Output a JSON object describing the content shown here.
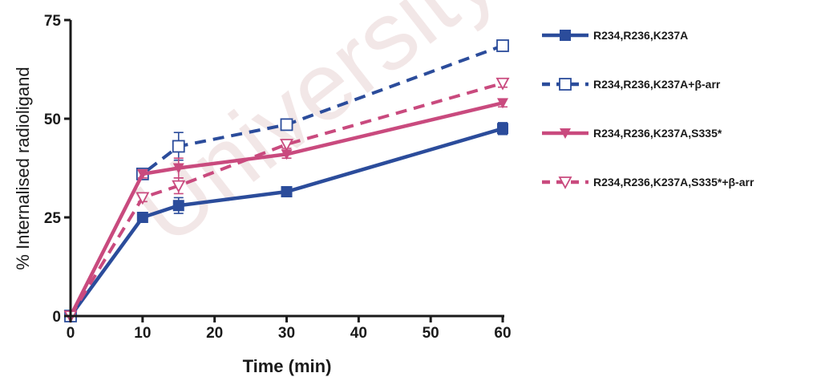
{
  "watermark": "University of",
  "chart_data": {
    "type": "line",
    "title": "",
    "xlabel": "Time (min)",
    "ylabel": "% Internalised radioligand",
    "xlim": [
      0,
      60
    ],
    "ylim": [
      0,
      75
    ],
    "xticks": [
      0,
      10,
      20,
      30,
      40,
      50,
      60
    ],
    "yticks": [
      0,
      25,
      50,
      75
    ],
    "grid": false,
    "legend_position": "right",
    "x": [
      0,
      10,
      15,
      30,
      60
    ],
    "series": [
      {
        "name": "R234,R236,K237A",
        "values": [
          0,
          25,
          28,
          31.5,
          47.5
        ],
        "errors": [
          0,
          1,
          2,
          0.8,
          1.5
        ],
        "color": "#2b4c9b",
        "dashed": false,
        "marker": "filled-square"
      },
      {
        "name": "R234,R236,K237A+β-arr",
        "values": [
          0,
          36,
          43,
          48.5,
          68.5
        ],
        "errors": [
          0,
          1,
          3.5,
          1,
          1
        ],
        "color": "#2b4c9b",
        "dashed": true,
        "marker": "open-square"
      },
      {
        "name": "R234,R236,K237A,S335*",
        "values": [
          0,
          36,
          37.5,
          41,
          54
        ],
        "errors": [
          0,
          1,
          2.5,
          1,
          1
        ],
        "color": "#c94a7e",
        "dashed": false,
        "marker": "filled-triangle-down"
      },
      {
        "name": "R234,R236,K237A,S335*+β-arr",
        "values": [
          0,
          30,
          33,
          43.5,
          59
        ],
        "errors": [
          0,
          1,
          2,
          1,
          1
        ],
        "color": "#c94a7e",
        "dashed": true,
        "marker": "open-triangle-down"
      }
    ]
  }
}
